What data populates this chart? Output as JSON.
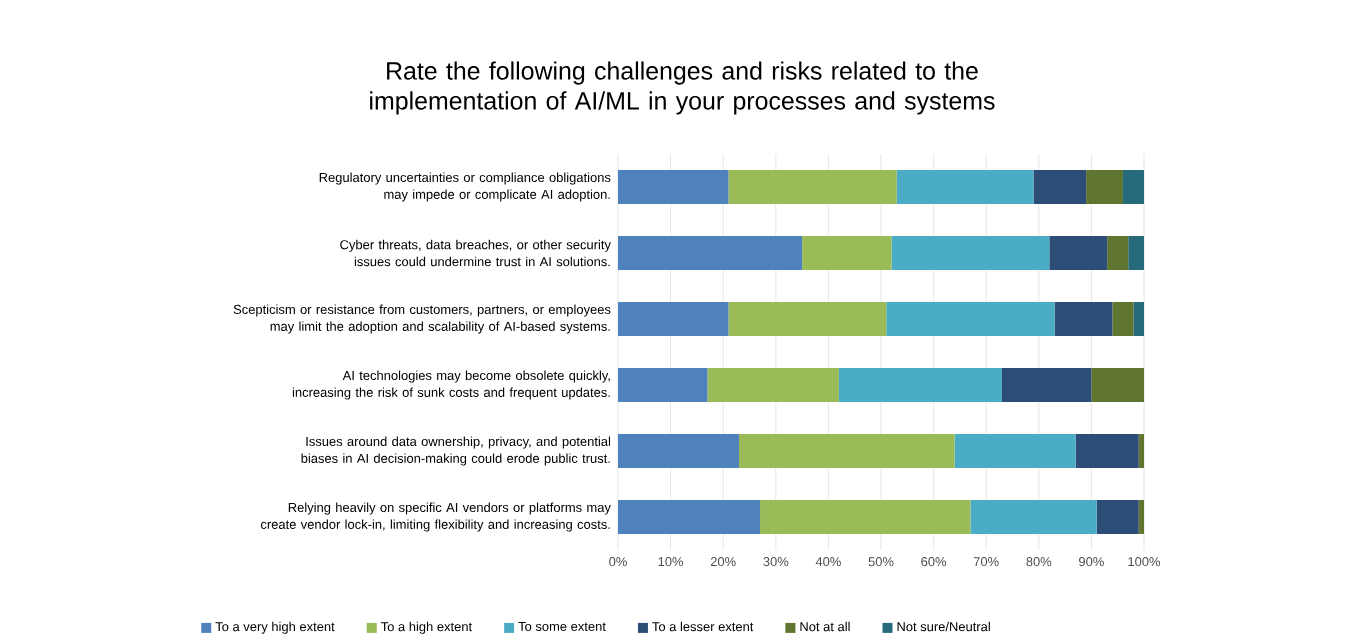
{
  "chart_data": {
    "type": "bar",
    "orientation": "horizontal",
    "stacked": true,
    "title": "Rate the following challenges and risks related to the implementation of AI/ML in your processes and systems",
    "categories": [
      "Regulatory uncertainties or compliance obligations may impede or complicate AI adoption.",
      "Cyber threats, data breaches, or other security issues could undermine trust in AI solutions.",
      "Scepticism or resistance from customers, partners, or employees may limit the adoption and scalability of AI-based systems.",
      "AI technologies may become obsolete quickly, increasing the risk of sunk costs and frequent updates.",
      "Issues around data ownership, privacy, and potential biases in AI decision-making could erode public trust.",
      "Relying heavily on specific AI vendors or platforms may create vendor lock-in, limiting flexibility and increasing costs."
    ],
    "series": [
      {
        "name": "To a very high extent",
        "color": "#4f81bd",
        "values": [
          21,
          35,
          21,
          17,
          23,
          27
        ]
      },
      {
        "name": "To a high extent",
        "color": "#9bbb59",
        "values": [
          32,
          17,
          30,
          25,
          41,
          40
        ]
      },
      {
        "name": "To some extent",
        "color": "#4bacc6",
        "values": [
          26,
          30,
          32,
          31,
          23,
          24
        ]
      },
      {
        "name": "To a lesser extent",
        "color": "#2c4d75",
        "values": [
          10,
          11,
          11,
          17,
          12,
          8
        ]
      },
      {
        "name": "Not at all",
        "color": "#5f7530",
        "values": [
          7,
          4,
          4,
          10,
          1,
          1
        ]
      },
      {
        "name": "Not sure/Neutral",
        "color": "#276a7c",
        "values": [
          4,
          3,
          2,
          0,
          0,
          0
        ]
      }
    ],
    "xlim": [
      0,
      100
    ],
    "xticks": [
      {
        "value": 0,
        "label": "0%"
      },
      {
        "value": 10,
        "label": "10%"
      },
      {
        "value": 20,
        "label": "20%"
      },
      {
        "value": 30,
        "label": "30%"
      },
      {
        "value": 40,
        "label": "40%"
      },
      {
        "value": 50,
        "label": "50%"
      },
      {
        "value": 60,
        "label": "60%"
      },
      {
        "value": 70,
        "label": "70%"
      },
      {
        "value": 80,
        "label": "80%"
      },
      {
        "value": 90,
        "label": "90%"
      },
      {
        "value": 100,
        "label": "100%"
      }
    ],
    "grid": "x",
    "legend": "bottom"
  }
}
